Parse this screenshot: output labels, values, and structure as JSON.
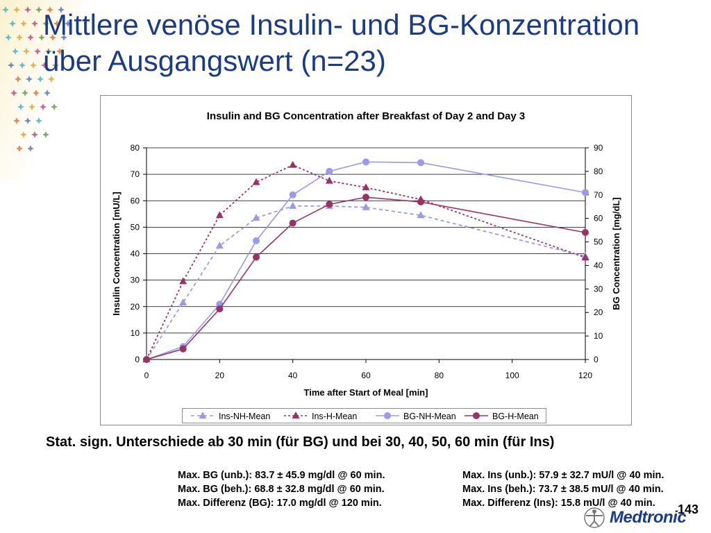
{
  "slide": {
    "title_line1": "Mittlere venöse Insulin- und BG-Konzentration",
    "title_line2": "über Ausgangswert (n=23)",
    "stat_text": "Stat. sign. Unterschiede ab 30 min (für BG) und bei 30, 40, 50, 60 min (für Ins)",
    "stats_left": [
      "Max. BG (unb.): 83.7 ± 45.9 mg/dl @ 60 min.",
      "Max. BG (beh.): 68.8 ± 32.8 mg/dl @ 60 min.",
      "Max. Differenz (BG): 17.0 mg/dl @ 120 min."
    ],
    "stats_right": [
      "Max. Ins (unb.): 57.9 ± 32.7 mU/l @ 40 min.",
      "Max. Ins (beh.): 73.7 ± 38.5 mU/l @ 40 min.",
      "Max. Differenz (Ins): 15.8 mU/l @ 40 min."
    ],
    "page_number": "143",
    "logo_text": "Medtronic"
  },
  "colors": {
    "title": "#1a3a8a",
    "ins_nh": "#9999ee",
    "ins_h": "#993366",
    "bg_nh": "#9999ee",
    "bg_h": "#993366"
  },
  "chart_data": {
    "type": "line",
    "title": "Insulin and BG Concentration after Breakfast of Day 2 and Day 3",
    "xlabel": "Time after Start of Meal [min]",
    "ylabel_left": "Insulin Concentration [mU/L]",
    "ylabel_right": "BG Concentration [mg/dL]",
    "xlim": [
      0,
      120
    ],
    "ylim_left": [
      0,
      80
    ],
    "ylim_right": [
      0,
      90
    ],
    "x_ticks": [
      0,
      20,
      40,
      60,
      80,
      100,
      120
    ],
    "y_left_ticks": [
      0,
      10,
      20,
      30,
      40,
      50,
      60,
      70,
      80
    ],
    "y_right_ticks": [
      0,
      10,
      20,
      30,
      40,
      50,
      60,
      70,
      80,
      90
    ],
    "grid": "horizontal",
    "legend_position": "bottom",
    "series": [
      {
        "name": "Ins-NH-Mean",
        "axis": "left",
        "style": "dashed",
        "marker": "triangle",
        "x": [
          0,
          10,
          20,
          30,
          40,
          50,
          60,
          75,
          120
        ],
        "y": [
          0,
          21.5,
          43,
          53.5,
          58,
          58,
          57.5,
          54.5,
          39
        ]
      },
      {
        "name": "Ins-H-Mean",
        "axis": "left",
        "style": "dotted",
        "marker": "triangle",
        "x": [
          0,
          10,
          20,
          30,
          40,
          50,
          60,
          75,
          120
        ],
        "y": [
          0,
          29.5,
          54.5,
          67,
          73.5,
          67.5,
          65,
          60.5,
          38.5
        ]
      },
      {
        "name": "BG-NH-Mean",
        "axis": "right",
        "style": "solid",
        "marker": "circle",
        "x": [
          0,
          10,
          20,
          30,
          40,
          50,
          60,
          75,
          120
        ],
        "y": [
          0,
          5.5,
          23.5,
          50.5,
          70,
          80,
          84,
          83.7,
          71
        ]
      },
      {
        "name": "BG-H-Mean",
        "axis": "right",
        "style": "solid",
        "marker": "circle",
        "x": [
          0,
          10,
          20,
          30,
          40,
          50,
          60,
          75,
          120
        ],
        "y": [
          0,
          4.5,
          21.5,
          43.5,
          58,
          66,
          69,
          67,
          54
        ]
      }
    ]
  }
}
